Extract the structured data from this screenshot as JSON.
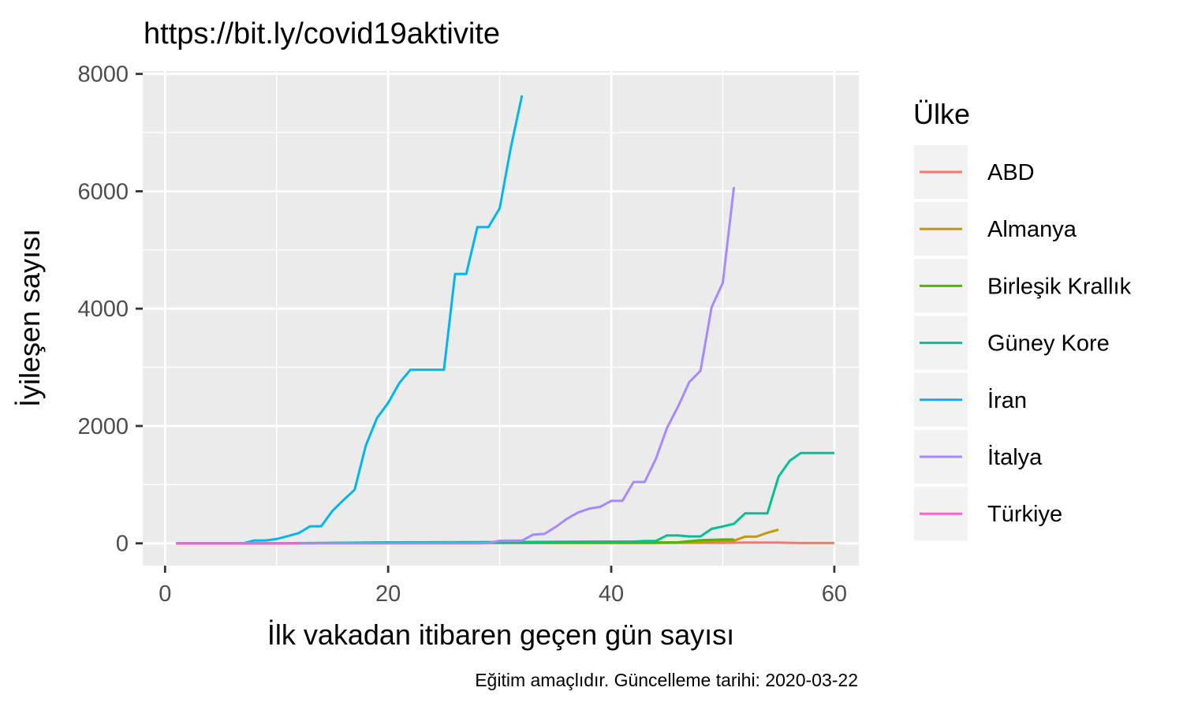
{
  "chart_data": {
    "type": "line",
    "title": "https://bit.ly/covid19aktivite",
    "xlabel": "İlk vakadan itibaren geçen gün sayısı",
    "ylabel": "İyileşen sayısı",
    "caption": "Eğitim amaçlıdır. Güncelleme tarihi: 2020-03-22",
    "xlim": [
      -2,
      62.2
    ],
    "ylim": [
      -380,
      8050
    ],
    "x_ticks": [
      0,
      20,
      40,
      60
    ],
    "x_tick_labels": [
      "0",
      "20",
      "40",
      "60"
    ],
    "y_ticks": [
      0,
      2000,
      4000,
      6000,
      8000
    ],
    "y_tick_labels": [
      "0",
      "2000",
      "4000",
      "6000",
      "8000"
    ],
    "grid": true,
    "panel_background": "#ebebeb",
    "legend_title": "Ülke",
    "legend_position": "right",
    "series": [
      {
        "name": "ABD",
        "color": "#f8766d",
        "x": [
          1,
          5,
          10,
          20,
          25,
          30,
          35,
          40,
          45,
          48,
          50,
          52,
          54,
          55,
          56,
          57,
          58,
          59,
          60
        ],
        "y": [
          0,
          0,
          1,
          3,
          7,
          7,
          7,
          7,
          7,
          8,
          8,
          12,
          12,
          12,
          8,
          5,
          5,
          5,
          5
        ]
      },
      {
        "name": "Almanya",
        "color": "#c49a00",
        "x": [
          1,
          10,
          20,
          23,
          30,
          40,
          46,
          48,
          50,
          51,
          52,
          53,
          54,
          55
        ],
        "y": [
          0,
          0,
          14,
          16,
          16,
          16,
          16,
          18,
          46,
          46,
          113,
          113,
          180,
          233
        ]
      },
      {
        "name": "Birleşik Krallık",
        "color": "#53b400",
        "x": [
          1,
          10,
          20,
          30,
          40,
          44,
          46,
          48,
          50,
          51
        ],
        "y": [
          0,
          0,
          8,
          8,
          8,
          8,
          18,
          53,
          65,
          65
        ]
      },
      {
        "name": "Güney Kore",
        "color": "#00c094",
        "x": [
          1,
          10,
          20,
          30,
          40,
          42,
          43,
          44,
          45,
          46,
          47,
          48,
          49,
          50,
          51,
          52,
          53,
          54,
          55,
          56,
          57,
          58,
          59,
          60
        ],
        "y": [
          0,
          0,
          16,
          22,
          30,
          30,
          41,
          41,
          135,
          135,
          118,
          118,
          247,
          288,
          333,
          510,
          510,
          510,
          1137,
          1407,
          1540,
          1540,
          1540,
          1540
        ]
      },
      {
        "name": "İran",
        "color": "#00b6eb",
        "x": [
          1,
          7,
          8,
          9,
          10,
          11,
          12,
          13,
          14,
          15,
          16,
          17,
          18,
          19,
          20,
          21,
          22,
          23,
          24,
          25,
          26,
          27,
          28,
          29,
          30,
          31,
          32
        ],
        "y": [
          0,
          0,
          49,
          49,
          73,
          123,
          175,
          291,
          291,
          552,
          739,
          913,
          1669,
          2134,
          2394,
          2731,
          2959,
          2959,
          2959,
          2959,
          4590,
          4590,
          5389,
          5389,
          5710,
          6745,
          7635
        ]
      },
      {
        "name": "İtalya",
        "color": "#a58aff",
        "x": [
          1,
          10,
          20,
          26,
          27,
          28,
          29,
          30,
          31,
          32,
          33,
          34,
          35,
          36,
          37,
          38,
          39,
          40,
          41,
          42,
          43,
          44,
          45,
          46,
          47,
          48,
          49,
          50,
          51
        ],
        "y": [
          0,
          0,
          0,
          0,
          1,
          1,
          3,
          45,
          46,
          46,
          149,
          160,
          276,
          414,
          523,
          589,
          622,
          724,
          724,
          1045,
          1045,
          1439,
          1966,
          2335,
          2749,
          2941,
          4025,
          4440,
          6072
        ]
      },
      {
        "name": "Türkiye",
        "color": "#fb61d7",
        "x": [
          1,
          5,
          10,
          11,
          12
        ],
        "y": [
          0,
          0,
          0,
          0,
          0
        ]
      }
    ]
  }
}
